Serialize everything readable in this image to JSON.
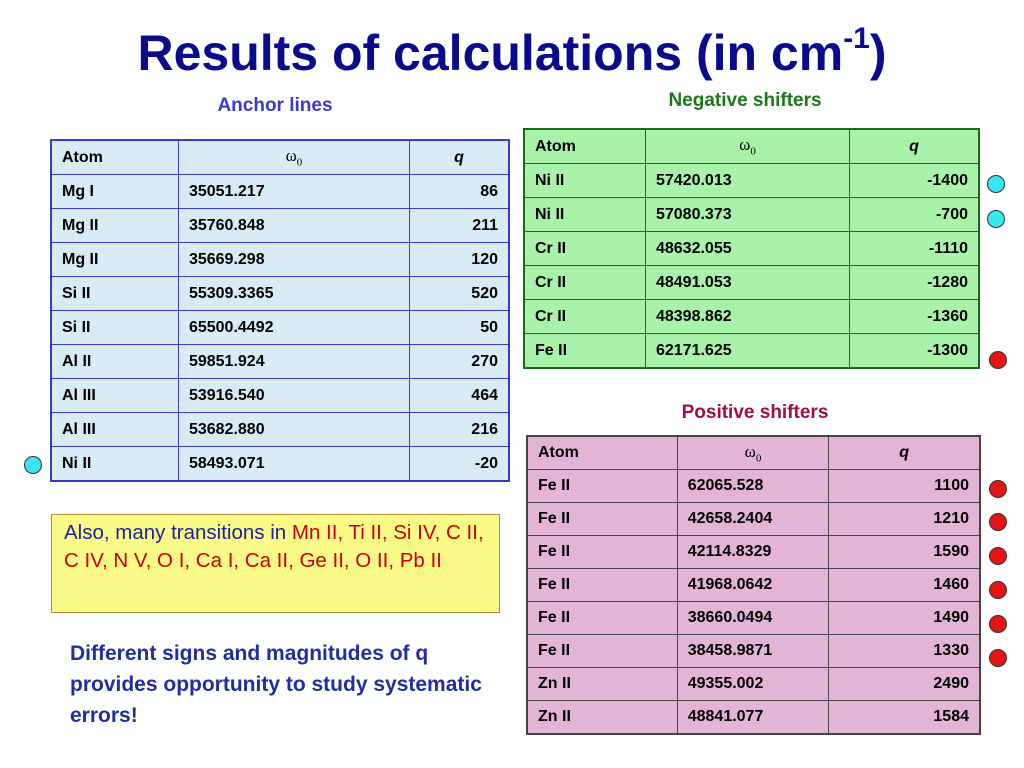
{
  "title": {
    "main": "Results of calculations (in cm",
    "sup": "-1",
    "close": ")"
  },
  "captions": {
    "anchor": "Anchor lines",
    "negative": "Negative shifters",
    "positive": "Positive shifters"
  },
  "colors": {
    "title": "#0a0a8c",
    "anchor_caption": "#3a3acc",
    "negative_caption": "#1a7a1a",
    "positive_caption": "#a0103a",
    "marker_cyan": "#39e6f2",
    "marker_red": "#e61414"
  },
  "headers": {
    "atom": "Atom",
    "omega_sym": "ω",
    "omega_sub": "0",
    "q": "q"
  },
  "anchor_rows": [
    {
      "atom": "Mg I",
      "w0": "35051.217",
      "q": "86"
    },
    {
      "atom": "Mg II",
      "w0": "35760.848",
      "q": "211"
    },
    {
      "atom": "Mg II",
      "w0": "35669.298",
      "q": "120"
    },
    {
      "atom": "Si II",
      "w0": "55309.3365",
      "q": "520"
    },
    {
      "atom": "Si II",
      "w0": "65500.4492",
      "q": "50"
    },
    {
      "atom": "Al II",
      "w0": "59851.924",
      "q": "270"
    },
    {
      "atom": "Al III",
      "w0": "53916.540",
      "q": "464"
    },
    {
      "atom": "Al III",
      "w0": "53682.880",
      "q": "216"
    },
    {
      "atom": "Ni II",
      "w0": "58493.071",
      "q": "-20"
    }
  ],
  "negative_rows": [
    {
      "atom": "Ni II",
      "w0": "57420.013",
      "q": "-1400"
    },
    {
      "atom": "Ni II",
      "w0": "57080.373",
      "q": "-700"
    },
    {
      "atom": "Cr II",
      "w0": "48632.055",
      "q": "-1110"
    },
    {
      "atom": "Cr II",
      "w0": "48491.053",
      "q": "-1280"
    },
    {
      "atom": "Cr II",
      "w0": "48398.862",
      "q": "-1360"
    },
    {
      "atom": "Fe II",
      "w0": "62171.625",
      "q": "-1300"
    }
  ],
  "positive_rows": [
    {
      "atom": "Fe II",
      "w0": "62065.528",
      "q": "1100"
    },
    {
      "atom": "Fe II",
      "w0": "42658.2404",
      "q": "1210"
    },
    {
      "atom": "Fe II",
      "w0": "42114.8329",
      "q": "1590"
    },
    {
      "atom": "Fe II",
      "w0": "41968.0642",
      "q": "1460"
    },
    {
      "atom": "Fe II",
      "w0": "38660.0494",
      "q": "1490"
    },
    {
      "atom": "Fe II",
      "w0": "38458.9871",
      "q": "1330"
    },
    {
      "atom": "Zn II",
      "w0": "49355.002",
      "q": "2490"
    },
    {
      "atom": "Zn II",
      "w0": "48841.077",
      "q": "1584"
    }
  ],
  "note": {
    "prefix": "Also, many transitions in ",
    "highlight": "Mn II, Ti II, Si IV, C II, C IV, N V, O I, Ca I, Ca II, Ge II, O II, Pb II"
  },
  "conclusion": "Different signs and magnitudes of q provides opportunity  to study systematic errors!"
}
